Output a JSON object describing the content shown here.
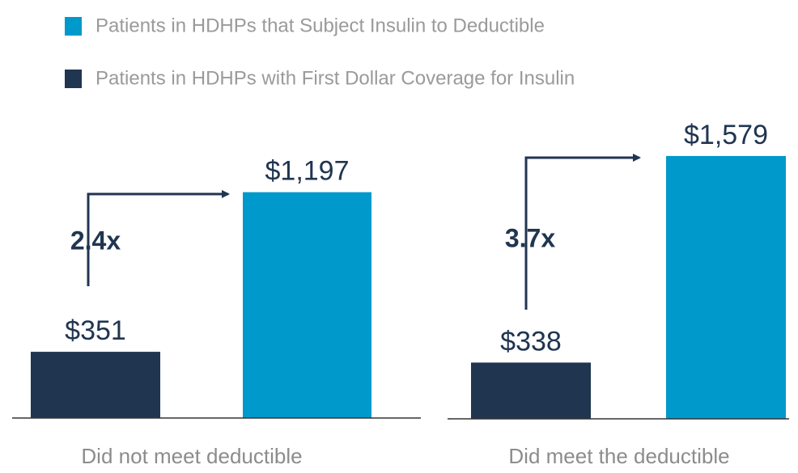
{
  "chart_data": [
    {
      "type": "bar",
      "categories": [
        "Did not meet deductible"
      ],
      "ylim": [
        0,
        1500
      ],
      "legend": true,
      "annotation": "2.4x",
      "series": [
        {
          "name": "Patients in HDHPs with First Dollar Coverage for Insulin",
          "color": "#203550",
          "values": [
            351
          ],
          "value_labels": [
            "$351"
          ]
        },
        {
          "name": "Patients in HDHPs that Subject Insulin to Deductible",
          "color": "#0099cc",
          "values": [
            1197
          ],
          "value_labels": [
            "$1,197"
          ]
        }
      ]
    },
    {
      "type": "bar",
      "categories": [
        "Did meet the deductible"
      ],
      "ylim": [
        0,
        1700
      ],
      "legend": false,
      "annotation": "3.7x",
      "series": [
        {
          "color": "#203550",
          "values": [
            338
          ],
          "value_labels": [
            "$338"
          ]
        },
        {
          "color": "#0099cc",
          "values": [
            1579
          ],
          "value_labels": [
            "$1,579"
          ]
        }
      ]
    }
  ]
}
